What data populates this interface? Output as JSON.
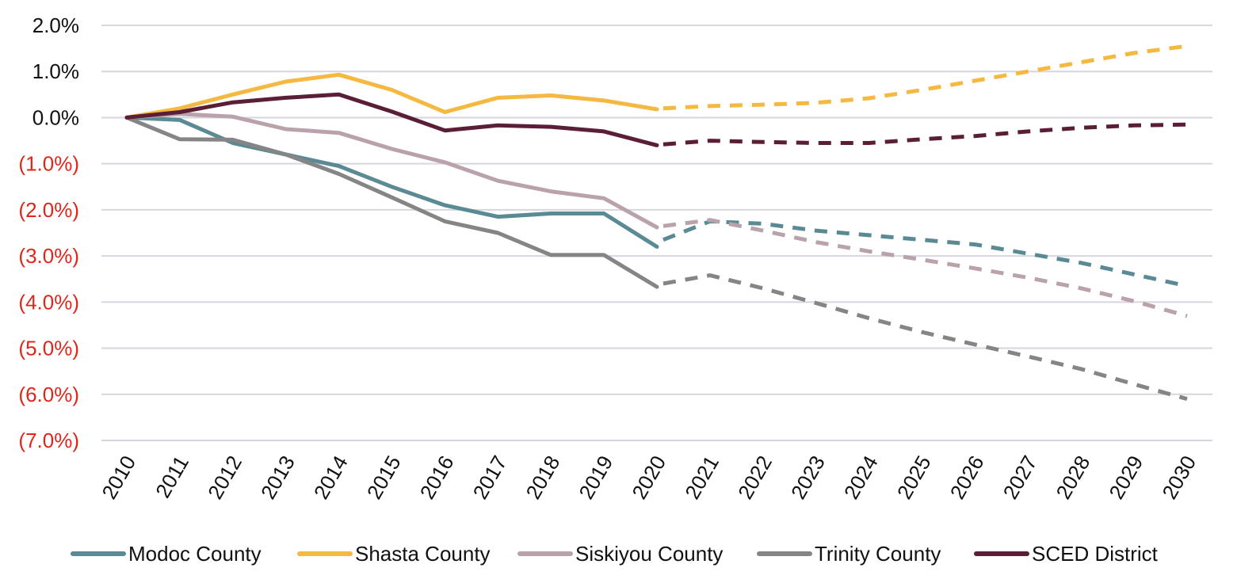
{
  "chart_data": {
    "type": "line",
    "title": "",
    "xlabel": "",
    "ylabel": "",
    "ylim": [
      -7.0,
      2.0
    ],
    "grid": true,
    "legend_position": "bottom",
    "y_ticks": [
      {
        "value": 2.0,
        "label": "2.0%",
        "color": "#111111"
      },
      {
        "value": 1.0,
        "label": "1.0%",
        "color": "#111111"
      },
      {
        "value": 0.0,
        "label": "0.0%",
        "color": "#111111"
      },
      {
        "value": -1.0,
        "label": "(1.0%)",
        "color": "#e0261b"
      },
      {
        "value": -2.0,
        "label": "(2.0%)",
        "color": "#e0261b"
      },
      {
        "value": -3.0,
        "label": "(3.0%)",
        "color": "#e0261b"
      },
      {
        "value": -4.0,
        "label": "(4.0%)",
        "color": "#e0261b"
      },
      {
        "value": -5.0,
        "label": "(5.0%)",
        "color": "#e0261b"
      },
      {
        "value": -6.0,
        "label": "(6.0%)",
        "color": "#e0261b"
      },
      {
        "value": -7.0,
        "label": "(7.0%)",
        "color": "#e0261b"
      }
    ],
    "x": [
      "2010",
      "2011",
      "2012",
      "2013",
      "2014",
      "2015",
      "2016",
      "2017",
      "2018",
      "2019",
      "2020",
      "2021",
      "2022",
      "2023",
      "2024",
      "2025",
      "2026",
      "2027",
      "2028",
      "2029",
      "2030"
    ],
    "projection_start": "2020",
    "series": [
      {
        "name": "Modoc County",
        "color": "#5a8a94",
        "actual": [
          0.0,
          -0.05,
          -0.55,
          -0.8,
          -1.05,
          -1.5,
          -1.9,
          -2.15,
          -2.08,
          -2.08,
          -2.8
        ],
        "projected": [
          -2.65,
          -2.25,
          -2.3,
          -2.45,
          -2.55,
          -2.65,
          -2.75,
          -2.95,
          -3.15,
          -3.4,
          -3.65
        ]
      },
      {
        "name": "Shasta County",
        "color": "#f5b841",
        "actual": [
          0.0,
          0.2,
          0.5,
          0.78,
          0.93,
          0.6,
          0.12,
          0.43,
          0.48,
          0.37,
          0.18
        ],
        "projected": [
          0.2,
          0.25,
          0.28,
          0.32,
          0.42,
          0.6,
          0.8,
          1.0,
          1.2,
          1.4,
          1.55
        ]
      },
      {
        "name": "Siskiyou County",
        "color": "#b9a2ab",
        "actual": [
          0.0,
          0.08,
          0.02,
          -0.25,
          -0.33,
          -0.68,
          -0.97,
          -1.37,
          -1.6,
          -1.75,
          -2.38
        ],
        "projected": [
          -2.35,
          -2.22,
          -2.45,
          -2.7,
          -2.9,
          -3.08,
          -3.27,
          -3.47,
          -3.7,
          -3.98,
          -4.3
        ]
      },
      {
        "name": "Trinity County",
        "color": "#858585",
        "actual": [
          0.0,
          -0.47,
          -0.48,
          -0.8,
          -1.22,
          -1.73,
          -2.25,
          -2.5,
          -2.98,
          -2.98,
          -3.67
        ],
        "projected": [
          -3.6,
          -3.42,
          -3.7,
          -4.02,
          -4.35,
          -4.65,
          -4.92,
          -5.18,
          -5.45,
          -5.78,
          -6.1
        ]
      },
      {
        "name": "SCED District",
        "color": "#5b1e37",
        "actual": [
          0.0,
          0.12,
          0.33,
          0.43,
          0.5,
          0.13,
          -0.28,
          -0.17,
          -0.2,
          -0.3,
          -0.6
        ],
        "projected": [
          -0.58,
          -0.5,
          -0.53,
          -0.55,
          -0.55,
          -0.47,
          -0.4,
          -0.3,
          -0.22,
          -0.17,
          -0.15
        ]
      }
    ]
  }
}
